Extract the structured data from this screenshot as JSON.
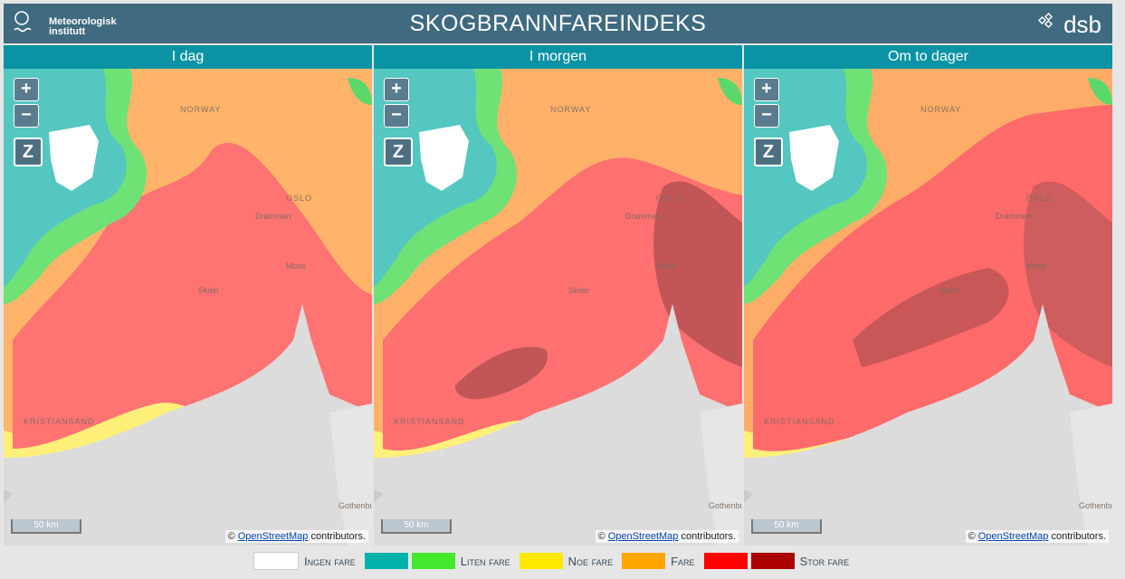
{
  "header": {
    "logo_line1": "Meteorologisk",
    "logo_line2": "institutt",
    "title": "SKOGBRANNFAREINDEKS",
    "partner": "dsb"
  },
  "panels": [
    {
      "title": "I dag"
    },
    {
      "title": "I morgen"
    },
    {
      "title": "Om to dager"
    }
  ],
  "map": {
    "zoom_in": "+",
    "zoom_out": "−",
    "z_button": "Z",
    "scale_label": "50 km",
    "attribution_prefix": "©",
    "attribution_link": "OpenStreetMap",
    "attribution_suffix": "contributors.",
    "place_labels": [
      "NORWAY",
      "OSLO",
      "Drammen",
      "Moss",
      "Skien",
      "KRISTIANSAND",
      "Gothenburg"
    ]
  },
  "legend": [
    {
      "label": "Ingen fare",
      "colors": [
        "#ffffff"
      ]
    },
    {
      "label": "Liten fare",
      "colors": [
        "#00b2a9",
        "#44e82c"
      ]
    },
    {
      "label": "Noe fare",
      "colors": [
        "#ffea00"
      ]
    },
    {
      "label": "Fare",
      "colors": [
        "#ffa500"
      ]
    },
    {
      "label": "Stor fare",
      "colors": [
        "#ff0000",
        "#aa0000"
      ]
    }
  ]
}
